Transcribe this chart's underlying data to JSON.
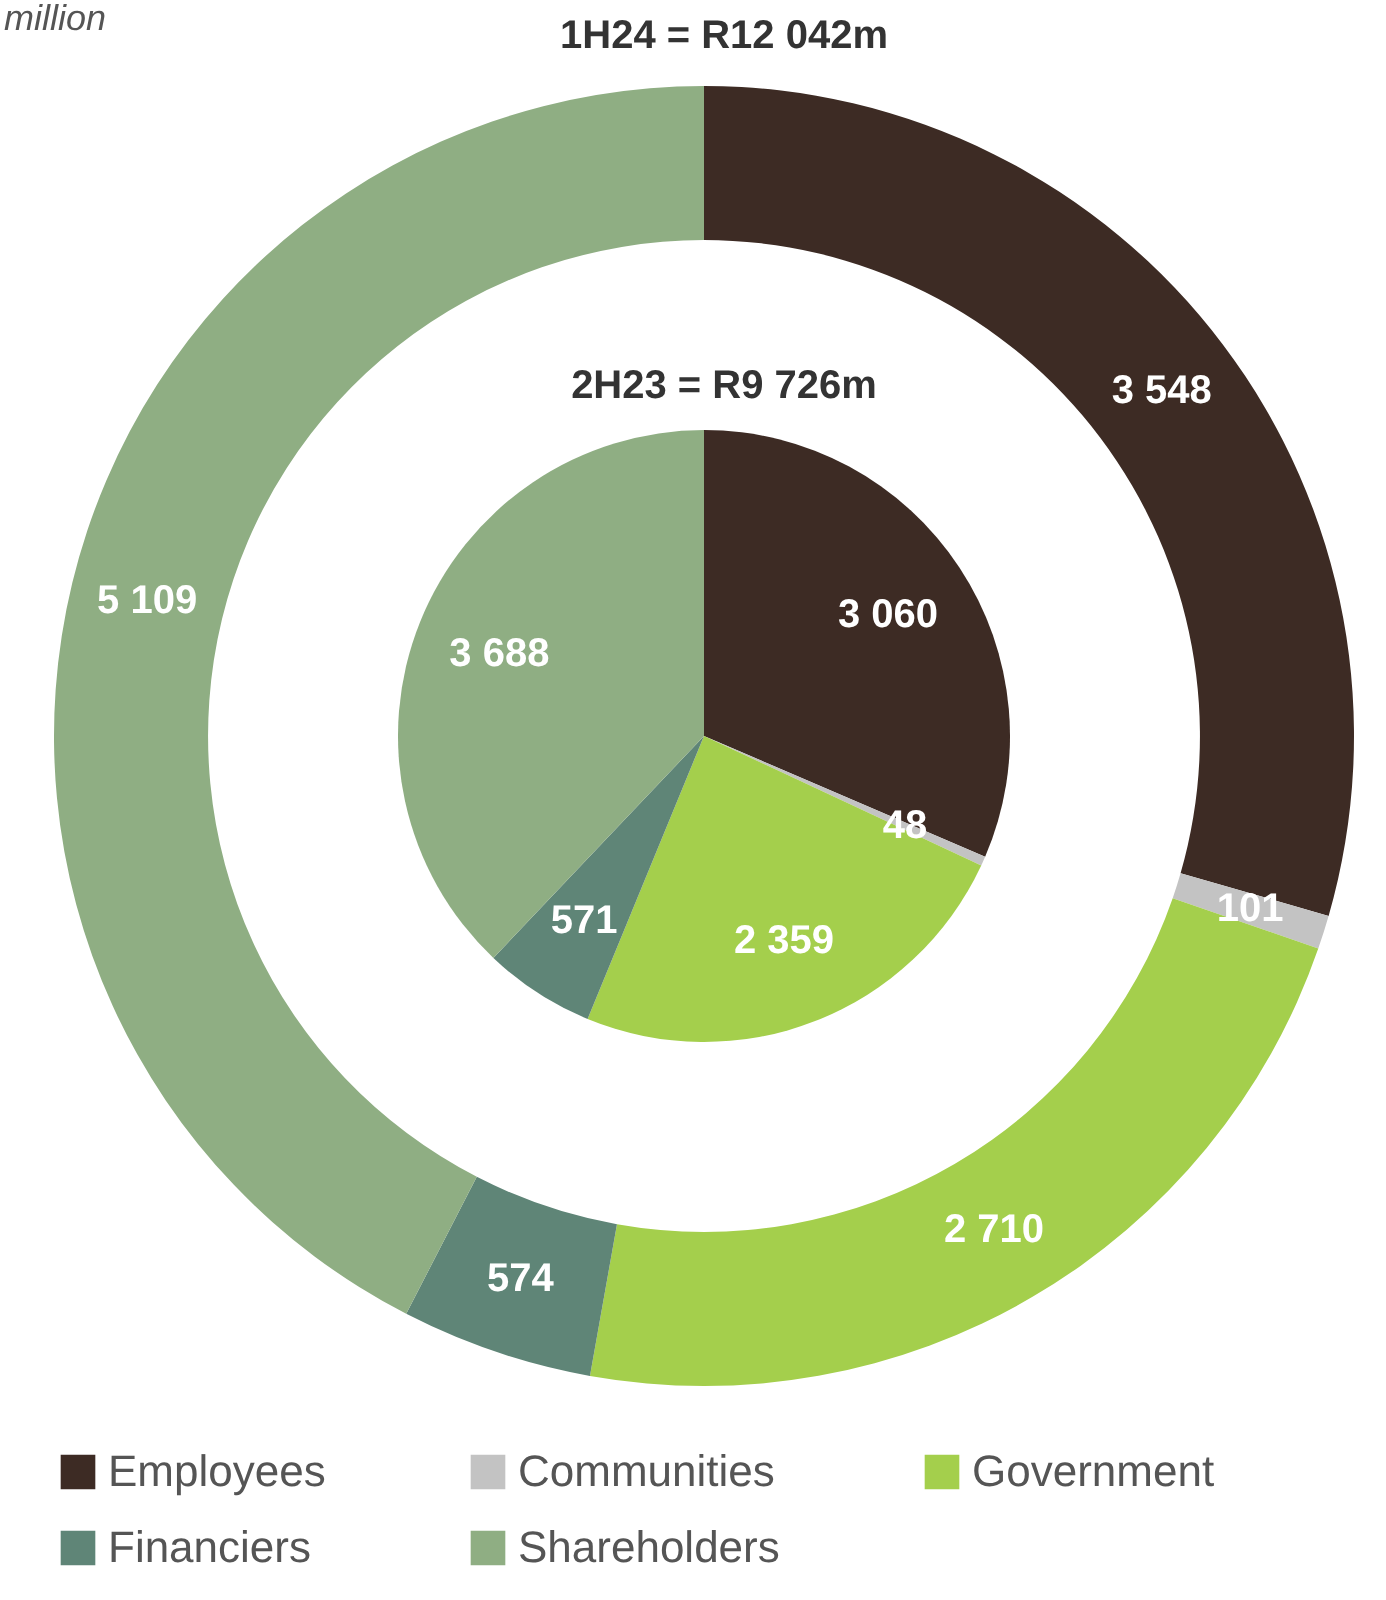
{
  "chart_data": {
    "type": "donut",
    "annotations": [
      "million"
    ],
    "categories": [
      "Employees",
      "Communities",
      "Government",
      "Financiers",
      "Shareholders"
    ],
    "colors": [
      "#3d2b24",
      "#c3c3c3",
      "#a4cf4c",
      "#5f8577",
      "#8fae83"
    ],
    "legend": "bottom",
    "series": [
      {
        "name": "1H24 = R12 042m",
        "values": [
          3548,
          101,
          2710,
          574,
          5109
        ],
        "value_labels": [
          "3 548",
          "101",
          "2 710",
          "574",
          "5 109"
        ]
      },
      {
        "name": "2H23 = R9 726m",
        "type": "pie",
        "values": [
          3060,
          48,
          2359,
          571,
          3688
        ],
        "value_labels": [
          "3 060",
          "48",
          "2 359",
          "571",
          "3 688"
        ]
      }
    ]
  }
}
